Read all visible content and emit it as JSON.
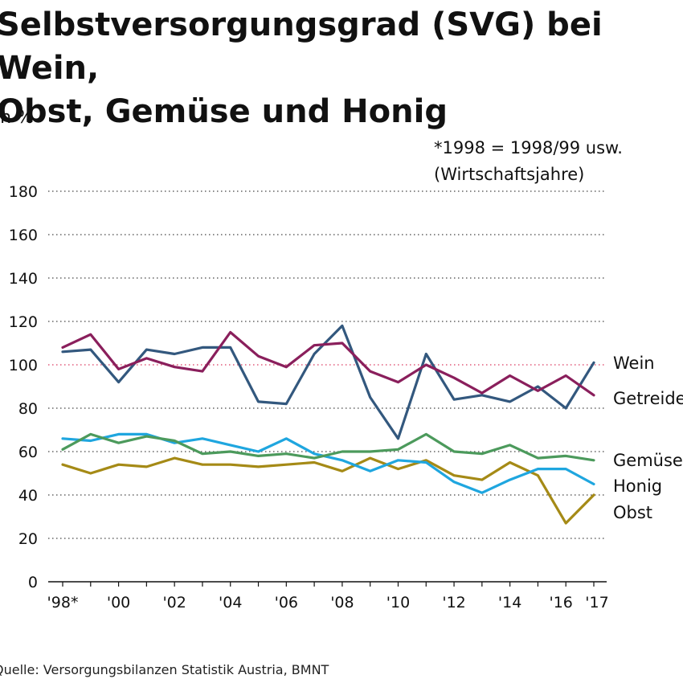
{
  "title": "Selbstversorgungsgrad (SVG) bei Wein,\nObst, Gemüse und Honig",
  "unit_label": "in %",
  "note": "*1998 = 1998/99 usw.\n(Wirtschaftsjahre)",
  "source": "Quelle: Versorgungsbilanzen Statistik Austria, BMNT",
  "chart_data": {
    "type": "line",
    "x": [
      1998,
      1999,
      2000,
      2001,
      2002,
      2003,
      2004,
      2005,
      2006,
      2007,
      2008,
      2009,
      2010,
      2011,
      2012,
      2013,
      2014,
      2015,
      2016,
      2017
    ],
    "x_tick_values": [
      1998,
      2000,
      2002,
      2004,
      2006,
      2008,
      2010,
      2012,
      2014,
      2016,
      2017
    ],
    "x_tick_labels": [
      "'98*",
      "'00",
      "'02",
      "'04",
      "'06",
      "'08",
      "'10",
      "'12",
      "'14",
      "'16",
      "'17"
    ],
    "ylim": [
      0,
      180
    ],
    "y_ticks": [
      0,
      20,
      40,
      60,
      80,
      100,
      120,
      140,
      160,
      180
    ],
    "grid": "horizontal dotted",
    "reference_line": {
      "y": 100,
      "color": "#e05a7a"
    },
    "series": [
      {
        "name": "Wein",
        "color": "#8a1f5c",
        "values": [
          108,
          114,
          98,
          103,
          99,
          97,
          115,
          104,
          99,
          109,
          110,
          97,
          92,
          100,
          94,
          87,
          95,
          88,
          95,
          86
        ]
      },
      {
        "name": "Getreide",
        "color": "#33587e",
        "values": [
          106,
          107,
          92,
          107,
          105,
          108,
          108,
          83,
          82,
          105,
          118,
          85,
          66,
          105,
          84,
          86,
          83,
          90,
          80,
          101
        ]
      },
      {
        "name": "Gemüse",
        "color": "#4c9a5c",
        "values": [
          61,
          68,
          64,
          67,
          65,
          59,
          60,
          58,
          59,
          57,
          60,
          60,
          61,
          68,
          60,
          59,
          63,
          57,
          58,
          56
        ]
      },
      {
        "name": "Honig",
        "color": "#1fa6df",
        "values": [
          66,
          65,
          68,
          68,
          64,
          66,
          63,
          60,
          66,
          59,
          56,
          51,
          56,
          55,
          46,
          41,
          47,
          52,
          52,
          45
        ]
      },
      {
        "name": "Obst",
        "color": "#a58a16",
        "values": [
          54,
          50,
          54,
          53,
          57,
          54,
          54,
          53,
          54,
          55,
          51,
          57,
          52,
          56,
          49,
          47,
          55,
          49,
          27,
          40
        ]
      }
    ],
    "series_label_order": [
      "Wein",
      "Getreide",
      "Gemüse",
      "Honig",
      "Obst"
    ]
  }
}
